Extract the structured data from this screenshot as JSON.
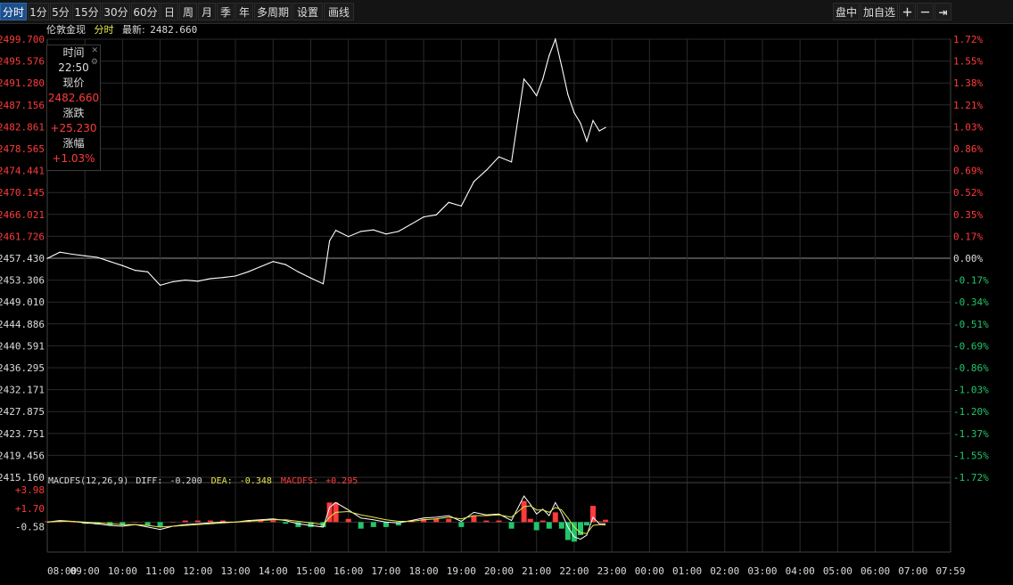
{
  "toolbar": {
    "periods": [
      "分时",
      "1分",
      "5分",
      "15分",
      "30分",
      "60分",
      "日",
      "周",
      "月",
      "季",
      "年",
      "多周期",
      "设置",
      "画线"
    ],
    "active_period": "分时",
    "right_items": [
      "盘中",
      "加自选"
    ],
    "icons": [
      "plus-icon",
      "minus-icon",
      "pin-right-icon"
    ]
  },
  "info": {
    "name": "伦敦金现",
    "period": "分时",
    "latest_label": "最新:",
    "latest_value": "2482.660"
  },
  "tooltip": {
    "time_label": "时间",
    "time_value": "22:50",
    "price_label": "现价",
    "price_value": "2482.660",
    "change_label": "涨跌",
    "change_value": "+25.230",
    "pct_label": "涨幅",
    "pct_value": "+1.03%"
  },
  "macd": {
    "title": "MACDFS(12,26,9)",
    "diff_label": "DIFF:",
    "diff_value": "-0.200",
    "dea_label": "DEA:",
    "dea_value": "-0.348",
    "macdfs_label": "MACDFS:",
    "macdfs_value": "+0.295",
    "y_labels": [
      "+3.98",
      "+1.70",
      "-0.58"
    ]
  },
  "colors": {
    "up": "#ff3b3b",
    "down": "#22c56a",
    "grid": "#2a2a2a",
    "price_line": "#ffffff",
    "dea": "#e8e84a",
    "active_tab": "#1d4f8c"
  },
  "chart_data": {
    "type": "line",
    "title": "",
    "prev_close": 2457.43,
    "ylim": [
      2415.16,
      2499.7
    ],
    "y_left_ticks": [
      "2499.700",
      "2495.576",
      "2491.280",
      "2487.156",
      "2482.861",
      "2478.565",
      "2474.441",
      "2470.145",
      "2466.021",
      "2461.726",
      "2457.430",
      "2453.306",
      "2449.010",
      "2444.886",
      "2440.591",
      "2436.295",
      "2432.171",
      "2427.875",
      "2423.751",
      "2419.456",
      "2415.160"
    ],
    "y_right_ticks": [
      "1.72%",
      "1.55%",
      "1.38%",
      "1.21%",
      "1.03%",
      "0.86%",
      "0.69%",
      "0.52%",
      "0.35%",
      "0.17%",
      "0.00%",
      "-0.17%",
      "-0.34%",
      "-0.51%",
      "-0.69%",
      "-0.86%",
      "-1.03%",
      "-1.20%",
      "-1.37%",
      "-1.55%",
      "-1.72%"
    ],
    "x_ticks": [
      "08:00",
      "09:00",
      "10:00",
      "11:00",
      "12:00",
      "13:00",
      "14:00",
      "15:00",
      "16:00",
      "17:00",
      "18:00",
      "19:00",
      "20:00",
      "21:00",
      "22:00",
      "23:00",
      "00:00",
      "01:00",
      "02:00",
      "03:00",
      "04:00",
      "05:00",
      "06:00",
      "07:00",
      "07:59"
    ],
    "series": [
      {
        "x": [
          "08:00",
          "08:20",
          "08:40",
          "09:00",
          "09:20",
          "09:40",
          "10:00",
          "10:20",
          "10:40",
          "11:00",
          "11:20",
          "11:40",
          "12:00",
          "12:20",
          "12:40",
          "13:00",
          "13:20",
          "13:40",
          "14:00",
          "14:20",
          "14:40",
          "15:00",
          "15:20",
          "15:30",
          "15:40",
          "16:00",
          "16:20",
          "16:40",
          "17:00",
          "17:20",
          "17:40",
          "18:00",
          "18:20",
          "18:40",
          "19:00",
          "19:20",
          "19:40",
          "20:00",
          "20:20",
          "20:40",
          "20:50",
          "21:00",
          "21:10",
          "21:20",
          "21:30",
          "21:40",
          "21:50",
          "22:00",
          "22:10",
          "22:20",
          "22:30",
          "22:40",
          "22:50"
        ],
        "values": [
          2457.4,
          2458.6,
          2458.2,
          2457.9,
          2457.6,
          2456.8,
          2456.0,
          2455.1,
          2454.8,
          2452.2,
          2452.9,
          2453.2,
          2453.0,
          2453.5,
          2453.7,
          2454.0,
          2454.8,
          2455.8,
          2456.8,
          2456.2,
          2454.8,
          2453.6,
          2452.5,
          2460.8,
          2462.8,
          2461.6,
          2462.6,
          2462.9,
          2462.1,
          2462.6,
          2464.0,
          2465.4,
          2465.8,
          2468.2,
          2467.5,
          2472.2,
          2474.4,
          2477.0,
          2476.0,
          2492.0,
          2490.5,
          2488.8,
          2492.0,
          2496.5,
          2499.7,
          2494.5,
          2489.0,
          2485.5,
          2483.5,
          2480.0,
          2484.0,
          2482.0,
          2482.66
        ]
      }
    ]
  },
  "macd_data": {
    "ylim": [
      -2.8,
      3.98
    ],
    "x": [
      "08:00",
      "08:20",
      "08:40",
      "09:00",
      "09:20",
      "09:40",
      "10:00",
      "10:20",
      "10:40",
      "11:00",
      "11:20",
      "11:40",
      "12:00",
      "12:20",
      "12:40",
      "13:00",
      "13:20",
      "13:40",
      "14:00",
      "14:20",
      "14:40",
      "15:00",
      "15:20",
      "15:30",
      "15:40",
      "16:00",
      "16:20",
      "16:40",
      "17:00",
      "17:20",
      "17:40",
      "18:00",
      "18:20",
      "18:40",
      "19:00",
      "19:20",
      "19:40",
      "20:00",
      "20:20",
      "20:40",
      "20:50",
      "21:00",
      "21:10",
      "21:20",
      "21:30",
      "21:40",
      "21:50",
      "22:00",
      "22:10",
      "22:20",
      "22:30",
      "22:40",
      "22:50"
    ],
    "diff": [
      0.0,
      0.2,
      0.1,
      -0.1,
      -0.2,
      -0.4,
      -0.5,
      -0.3,
      -0.6,
      -0.9,
      -0.5,
      -0.3,
      -0.2,
      -0.1,
      0.0,
      0.0,
      0.2,
      0.3,
      0.4,
      0.2,
      -0.2,
      -0.4,
      -0.6,
      1.8,
      2.4,
      1.5,
      0.5,
      0.3,
      0.0,
      -0.1,
      0.2,
      0.5,
      0.6,
      0.8,
      0.1,
      1.2,
      0.9,
      1.0,
      0.2,
      3.2,
      2.2,
      1.0,
      1.6,
      0.8,
      2.4,
      1.1,
      -0.6,
      -1.8,
      -2.1,
      -1.6,
      0.6,
      -0.2,
      -0.2
    ],
    "dea": [
      0.0,
      0.1,
      0.1,
      0.0,
      -0.1,
      -0.2,
      -0.3,
      -0.3,
      -0.4,
      -0.6,
      -0.5,
      -0.4,
      -0.3,
      -0.2,
      -0.1,
      0.0,
      0.1,
      0.2,
      0.3,
      0.3,
      0.1,
      -0.1,
      -0.3,
      0.6,
      1.2,
      1.3,
      0.9,
      0.6,
      0.3,
      0.1,
      0.1,
      0.3,
      0.4,
      0.6,
      0.4,
      0.8,
      0.8,
      0.9,
      0.6,
      1.9,
      2.0,
      1.5,
      1.5,
      1.2,
      1.8,
      1.5,
      0.5,
      -0.6,
      -1.3,
      -1.4,
      -0.4,
      -0.3,
      -0.35
    ],
    "hist": [
      0.1,
      0.2,
      0.0,
      -0.2,
      -0.3,
      -0.4,
      -0.4,
      0.0,
      -0.4,
      -0.6,
      0.0,
      0.2,
      0.2,
      0.2,
      0.2,
      0.0,
      0.2,
      0.2,
      0.2,
      -0.2,
      -0.6,
      -0.6,
      -0.6,
      2.4,
      2.4,
      0.4,
      -0.8,
      -0.6,
      -0.6,
      -0.4,
      0.2,
      0.4,
      0.4,
      0.4,
      -0.6,
      0.8,
      0.2,
      0.2,
      -0.8,
      2.6,
      0.4,
      -1.0,
      0.2,
      -0.8,
      1.2,
      -0.8,
      -2.2,
      -2.4,
      -1.6,
      -0.4,
      2.0,
      0.1,
      0.3
    ]
  }
}
